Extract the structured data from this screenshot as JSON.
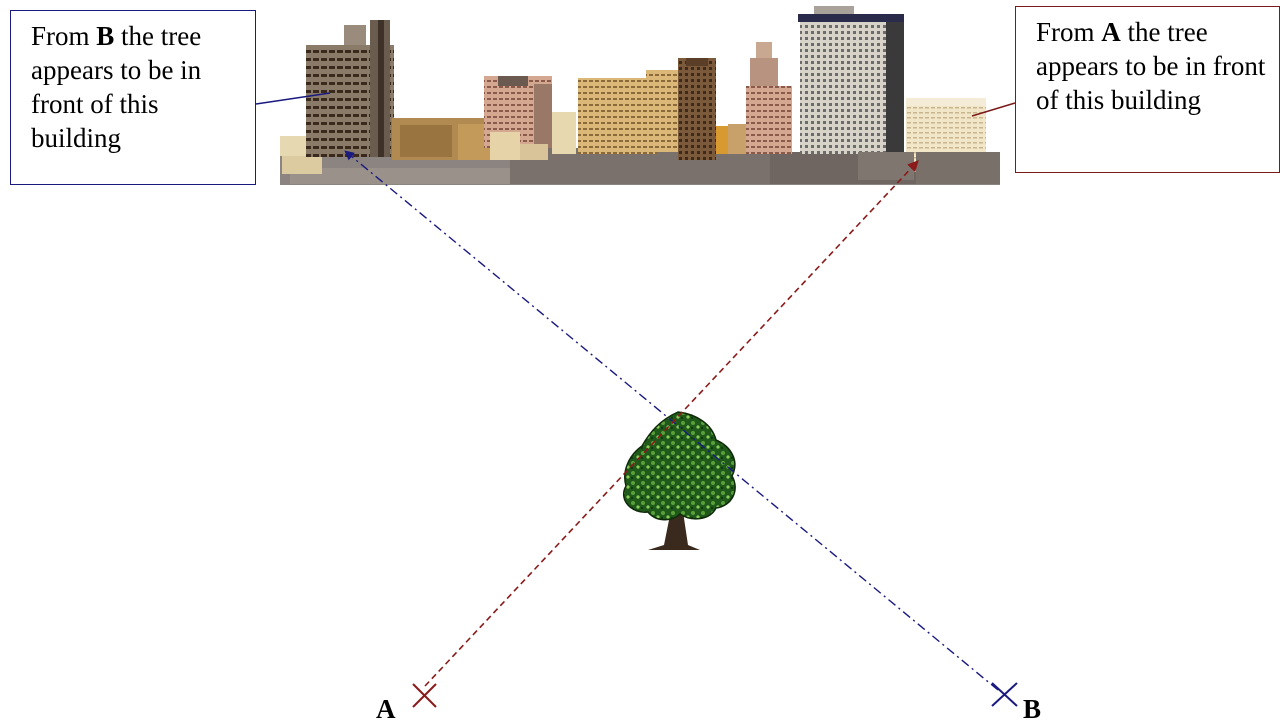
{
  "callouts": {
    "from_b": {
      "prefix": "From ",
      "letter": "B",
      "suffix": " the tree appears to be in front of this building"
    },
    "from_a": {
      "prefix": "From ",
      "letter": "A",
      "suffix": " the tree appears to be in front of this building"
    }
  },
  "points": {
    "a": "A",
    "b": "B"
  },
  "colors": {
    "sightline_a": "#8b1a1a",
    "sightline_b": "#1a1a80"
  },
  "icons": [
    "city-skyline",
    "tree-icon",
    "cross-marker-icon"
  ]
}
